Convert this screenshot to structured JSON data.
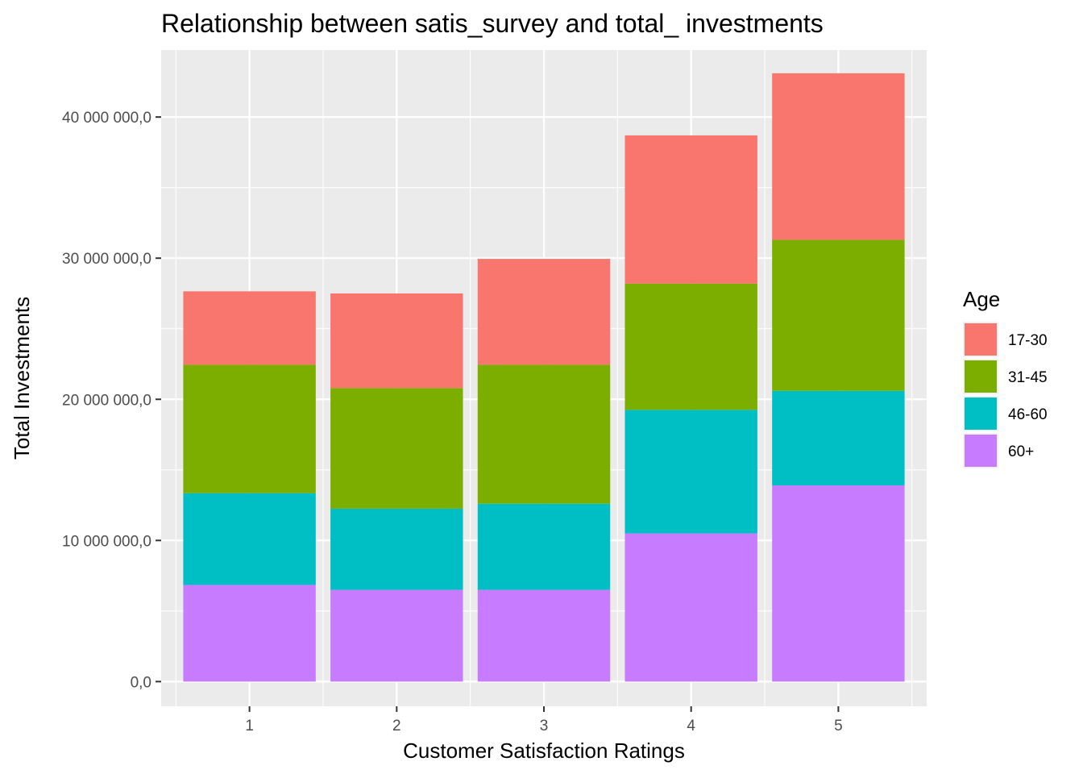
{
  "chart_data": {
    "type": "bar",
    "stacked": true,
    "title": "Relationship between satis_survey and total_ investments",
    "xlabel": "Customer Satisfaction Ratings",
    "ylabel": "Total Investments",
    "categories": [
      "1",
      "2",
      "3",
      "4",
      "5"
    ],
    "ylim": [
      -1750000,
      44750000
    ],
    "yticks": [
      0,
      10000000,
      20000000,
      30000000,
      40000000
    ],
    "ytick_labels": [
      "0,0",
      "10 000 000,0",
      "20 000 000,0",
      "30 000 000,0",
      "40 000 000,0"
    ],
    "grid": true,
    "legend_position": "right",
    "legend_title": "Age",
    "series": [
      {
        "name": "60+",
        "color": "#C77CFF",
        "values": [
          6850000,
          6500000,
          6500000,
          10500000,
          13900000
        ]
      },
      {
        "name": "46-60",
        "color": "#00BFC4",
        "values": [
          6500000,
          5750000,
          6100000,
          8750000,
          6700000
        ]
      },
      {
        "name": "31-45",
        "color": "#7CAE00",
        "values": [
          9100000,
          8550000,
          9850000,
          8950000,
          10700000
        ]
      },
      {
        "name": "17-30",
        "color": "#F8766D",
        "values": [
          5200000,
          6700000,
          7500000,
          10500000,
          11800000
        ]
      }
    ],
    "legend_order": [
      "17-30",
      "31-45",
      "46-60",
      "60+"
    ],
    "colors": {
      "panel_background": "#EBEBEB",
      "grid": "#FFFFFF",
      "bar_17_30": "#F8766D",
      "bar_31_45": "#7CAE00",
      "bar_46_60": "#00BFC4",
      "bar_60_plus": "#C77CFF"
    }
  }
}
